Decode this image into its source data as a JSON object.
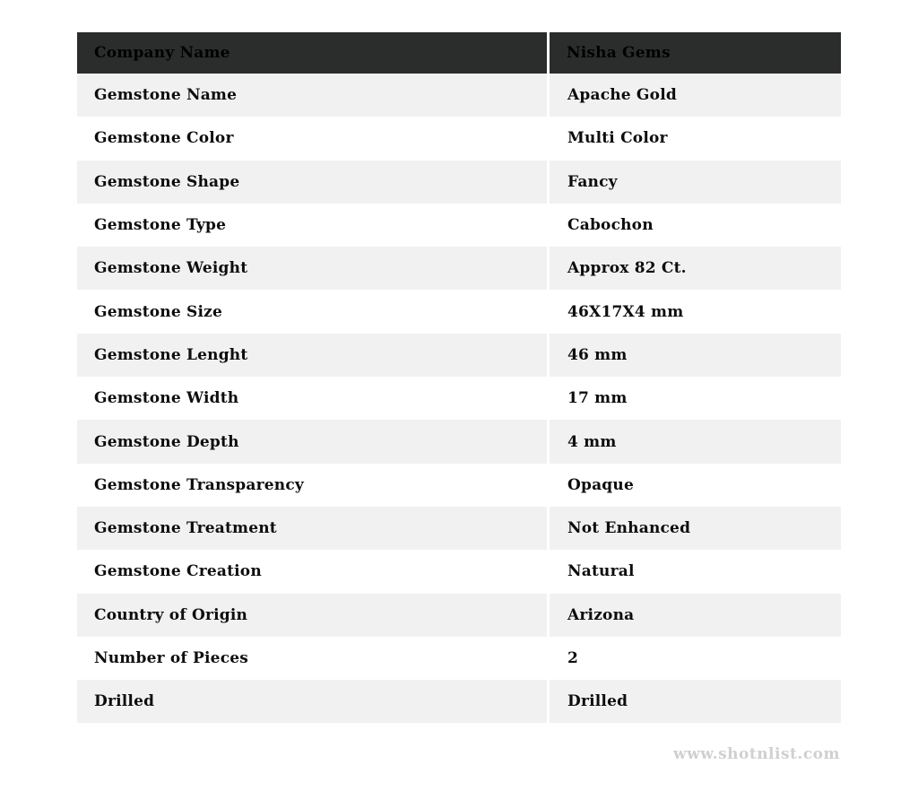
{
  "table": {
    "header": {
      "label": "Company Name",
      "value": "Nisha Gems"
    },
    "rows": [
      {
        "label": "Gemstone Name",
        "value": "Apache Gold"
      },
      {
        "label": "Gemstone Color",
        "value": "Multi Color"
      },
      {
        "label": "Gemstone Shape",
        "value": "Fancy"
      },
      {
        "label": "Gemstone Type",
        "value": "Cabochon"
      },
      {
        "label": "Gemstone Weight",
        "value": "Approx 82 Ct."
      },
      {
        "label": "Gemstone Size",
        "value": "46X17X4 mm"
      },
      {
        "label": "Gemstone Lenght",
        "value": "46 mm"
      },
      {
        "label": "Gemstone Width",
        "value": "17 mm"
      },
      {
        "label": "Gemstone Depth",
        "value": "4 mm"
      },
      {
        "label": "Gemstone Transparency",
        "value": "Opaque"
      },
      {
        "label": "Gemstone Treatment",
        "value": "Not Enhanced"
      },
      {
        "label": "Gemstone Creation",
        "value": "Natural"
      },
      {
        "label": "Country of Origin",
        "value": "Arizona"
      },
      {
        "label": "Number of Pieces",
        "value": "2"
      },
      {
        "label": "Drilled",
        "value": "Drilled"
      }
    ]
  },
  "footer": {
    "website": "www.shotnlist.com"
  },
  "colors": {
    "header_bg": "#2b2d2d",
    "header_text": "#000000",
    "row_alt_bg": "#f1f1f2",
    "row_bg": "#ffffff",
    "body_text": "#0d0d0d",
    "column_separator": "#ffffff",
    "watermark_text": "#d0d0d0"
  }
}
